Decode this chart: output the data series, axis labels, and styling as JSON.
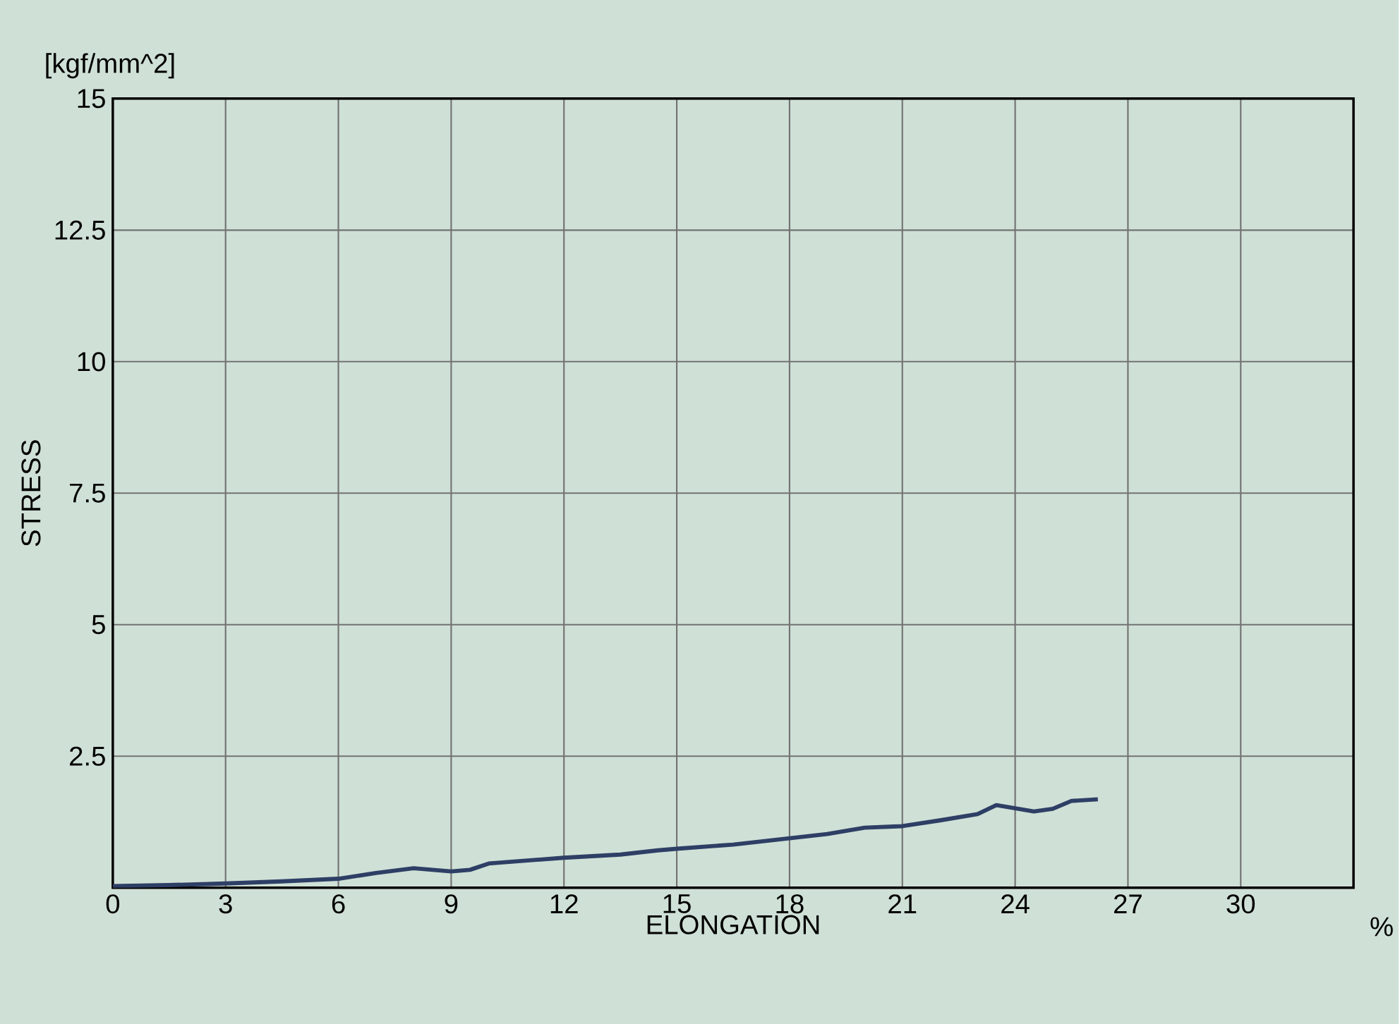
{
  "chart_data": {
    "type": "line",
    "xlabel": "ELONGATION",
    "ylabel": "STRESS",
    "annotations": [
      "[kgf/mm^2]",
      "%"
    ],
    "x": [
      0,
      1.5,
      3,
      4.5,
      6,
      7,
      8,
      9,
      9.5,
      10,
      12,
      13.5,
      14.5,
      15,
      16.5,
      18,
      19,
      20,
      21,
      22,
      23,
      23.5,
      24.5,
      25,
      25.5,
      26.2
    ],
    "series": [
      {
        "color": "#2e3f66",
        "values": [
          0.03,
          0.05,
          0.08,
          0.12,
          0.17,
          0.28,
          0.37,
          0.31,
          0.34,
          0.46,
          0.57,
          0.63,
          0.71,
          0.74,
          0.82,
          0.94,
          1.02,
          1.14,
          1.17,
          1.28,
          1.4,
          1.57,
          1.45,
          1.5,
          1.65,
          1.68
        ]
      }
    ],
    "xlim": [
      0,
      33
    ],
    "ylim": [
      0,
      15
    ],
    "xticks": [
      0,
      3,
      6,
      9,
      12,
      15,
      18,
      21,
      24,
      27,
      30
    ],
    "yticks": [
      2.5,
      5,
      7.5,
      10,
      12.5,
      15
    ],
    "grid": true,
    "line_style": "solid",
    "marker": "none"
  }
}
